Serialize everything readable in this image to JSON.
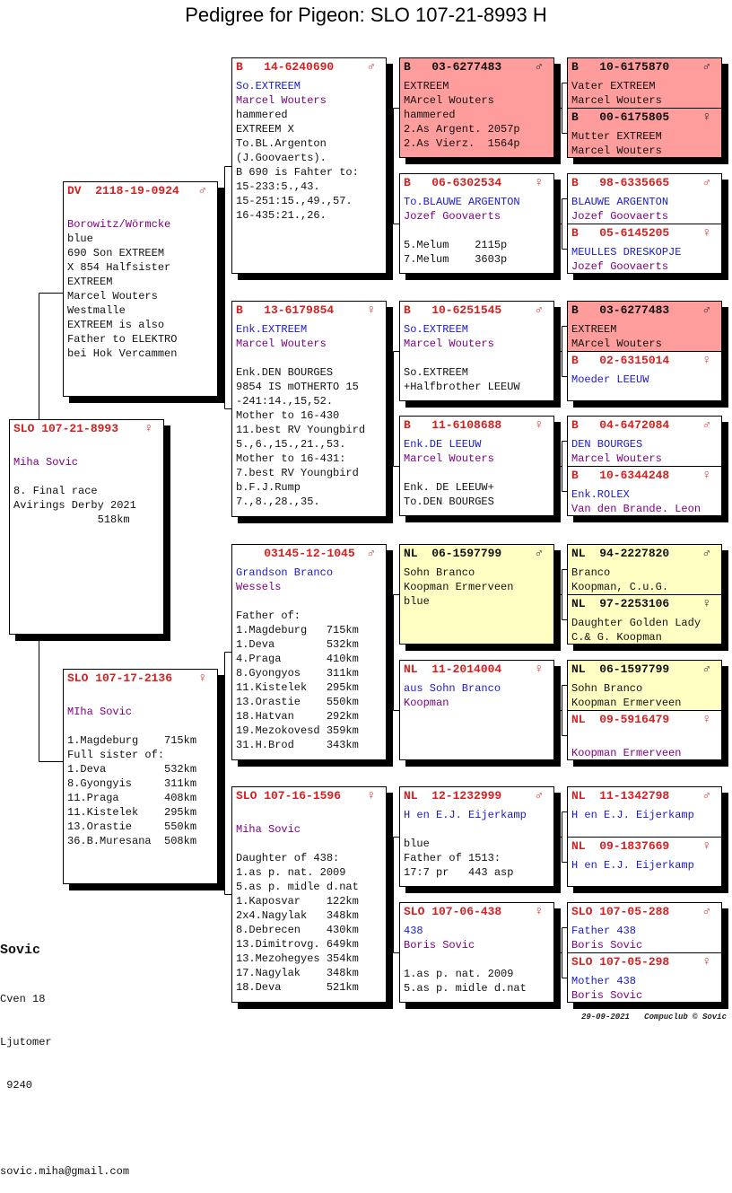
{
  "title": "Pedigree for Pigeon: SLO 107-21-8993 H",
  "colors": {
    "ring": "#d42020",
    "name": "#1a1ad0",
    "breeder": "#800080",
    "pink": "#ff9d9d",
    "yellow": "#ffffc4"
  },
  "pedigree": {
    "subject": {
      "ring": "SLO 107-21-8993",
      "sex": "♀",
      "bg": "white",
      "lines": [
        {
          "t": "",
          "s": "text"
        },
        {
          "t": "Miha Sovic",
          "s": "breeder"
        },
        {
          "t": "",
          "s": "text"
        },
        {
          "t": "8. Final race",
          "s": "text"
        },
        {
          "t": "Avirings Derby 2021",
          "s": "text"
        },
        {
          "t": "             518km",
          "s": "text"
        }
      ]
    },
    "sire": {
      "ring": "DV  2118-19-0924",
      "sex": "♂",
      "bg": "white",
      "lines": [
        {
          "t": "",
          "s": "text"
        },
        {
          "t": "Borowitz/Wörmcke",
          "s": "breeder"
        },
        {
          "t": "blue",
          "s": "text"
        },
        {
          "t": "690 Son EXTREEM",
          "s": "text"
        },
        {
          "t": "X 854 Halfsister",
          "s": "text"
        },
        {
          "t": "EXTREEM",
          "s": "text"
        },
        {
          "t": "Marcel Wouters",
          "s": "text"
        },
        {
          "t": "Westmalle",
          "s": "text"
        },
        {
          "t": "EXTREEM is also",
          "s": "text"
        },
        {
          "t": "Father to ELEKTRO",
          "s": "text"
        },
        {
          "t": "bei Hok Vercammen",
          "s": "text"
        }
      ]
    },
    "dam": {
      "ring": "SLO 107-17-2136",
      "sex": "♀",
      "bg": "white",
      "lines": [
        {
          "t": "",
          "s": "text"
        },
        {
          "t": "MIha Sovic",
          "s": "breeder"
        },
        {
          "t": "",
          "s": "text"
        },
        {
          "t": "1.Magdeburg    715km",
          "s": "text"
        },
        {
          "t": "Full sister of:",
          "s": "text"
        },
        {
          "t": "1.Deva         532km",
          "s": "text"
        },
        {
          "t": "8.Gyongyis     311km",
          "s": "text"
        },
        {
          "t": "11.Praga       408km",
          "s": "text"
        },
        {
          "t": "11.Kistelek    295km",
          "s": "text"
        },
        {
          "t": "13.Orastie     550km",
          "s": "text"
        },
        {
          "t": "36.B.Muresana  508km",
          "s": "text"
        }
      ]
    },
    "gen2": [
      {
        "ring": "B   14-6240690",
        "sex": "♂",
        "bg": "white",
        "lines": [
          {
            "t": "So.EXTREEM",
            "s": "name"
          },
          {
            "t": "Marcel Wouters",
            "s": "breeder"
          },
          {
            "t": "hammered",
            "s": "text"
          },
          {
            "t": "EXTREEM X",
            "s": "text"
          },
          {
            "t": "To.BL.Argenton",
            "s": "text"
          },
          {
            "t": "(J.Goovaerts).",
            "s": "text"
          },
          {
            "t": "B 690 is Fahter to:",
            "s": "text"
          },
          {
            "t": "15-233:5.,43.",
            "s": "text"
          },
          {
            "t": "15-251:15.,49.,57.",
            "s": "text"
          },
          {
            "t": "16-435:21.,26.",
            "s": "text"
          }
        ]
      },
      {
        "ring": "B   13-6179854",
        "sex": "♀",
        "bg": "white",
        "lines": [
          {
            "t": "Enk.EXTREEM",
            "s": "name"
          },
          {
            "t": "Marcel Wouters",
            "s": "breeder"
          },
          {
            "t": "",
            "s": "text"
          },
          {
            "t": "Enk.DEN BOURGES",
            "s": "text"
          },
          {
            "t": "9854 IS mOTHERTO 15",
            "s": "text"
          },
          {
            "t": "-241:14.,15,52.",
            "s": "text"
          },
          {
            "t": "Mother to 16-430",
            "s": "text"
          },
          {
            "t": "11.best RV Youngbird",
            "s": "text"
          },
          {
            "t": "5.,6.,15.,21.,53.",
            "s": "text"
          },
          {
            "t": "Mother to 16-431:",
            "s": "text"
          },
          {
            "t": "7.best RV Youngbird",
            "s": "text"
          },
          {
            "t": "b.F.J.Rump",
            "s": "text"
          },
          {
            "t": "7.,8.,28.,35.",
            "s": "text"
          }
        ]
      },
      {
        "ring": "    03145-12-1045",
        "sex": "♂",
        "bg": "white",
        "lines": [
          {
            "t": "Grandson Branco",
            "s": "name"
          },
          {
            "t": "Wessels",
            "s": "breeder"
          },
          {
            "t": "",
            "s": "text"
          },
          {
            "t": "Father of:",
            "s": "text"
          },
          {
            "t": "1.Magdeburg   715km",
            "s": "text"
          },
          {
            "t": "1.Deva        532km",
            "s": "text"
          },
          {
            "t": "4.Praga       410km",
            "s": "text"
          },
          {
            "t": "8.Gyongyos    311km",
            "s": "text"
          },
          {
            "t": "11.Kistelek   295km",
            "s": "text"
          },
          {
            "t": "13.Orastie    550km",
            "s": "text"
          },
          {
            "t": "18.Hatvan     292km",
            "s": "text"
          },
          {
            "t": "19.Mezokovesd 359km",
            "s": "text"
          },
          {
            "t": "31.H.Brod     343km",
            "s": "text"
          }
        ]
      },
      {
        "ring": "SLO 107-16-1596",
        "sex": "♀",
        "bg": "white",
        "lines": [
          {
            "t": "",
            "s": "text"
          },
          {
            "t": "Miha Sovic",
            "s": "breeder"
          },
          {
            "t": "",
            "s": "text"
          },
          {
            "t": "Daughter of 438:",
            "s": "text"
          },
          {
            "t": "1.as p. nat. 2009",
            "s": "text"
          },
          {
            "t": "5.as p. midle d.nat",
            "s": "text"
          },
          {
            "t": "1.Kaposvar    122km",
            "s": "text"
          },
          {
            "t": "2x4.Nagylak   348km",
            "s": "text"
          },
          {
            "t": "8.Debrecen    430km",
            "s": "text"
          },
          {
            "t": "13.Dimitrovg. 649km",
            "s": "text"
          },
          {
            "t": "13.Mezohegyes 354km",
            "s": "text"
          },
          {
            "t": "17.Nagylak    348km",
            "s": "text"
          },
          {
            "t": "18.Deva       521km",
            "s": "text"
          }
        ]
      }
    ],
    "gen3": [
      {
        "ring": "B   03-6277483",
        "sex": "♂",
        "bg": "pink",
        "lines": [
          {
            "t": "EXTREEM",
            "s": "name"
          },
          {
            "t": "MArcel Wouters",
            "s": "breeder"
          },
          {
            "t": "hammered",
            "s": "text"
          },
          {
            "t": "2.As Argent. 2057p",
            "s": "text"
          },
          {
            "t": "2.As Vierz.  1564p",
            "s": "text"
          }
        ]
      },
      {
        "ring": "B   06-6302534",
        "sex": "♀",
        "bg": "white",
        "lines": [
          {
            "t": "To.BLAUWE ARGENTON",
            "s": "name"
          },
          {
            "t": "Jozef Goovaerts",
            "s": "breeder"
          },
          {
            "t": "",
            "s": "text"
          },
          {
            "t": "5.Melum    2115p",
            "s": "text"
          },
          {
            "t": "7.Melum    3603p",
            "s": "text"
          }
        ]
      },
      {
        "ring": "B   10-6251545",
        "sex": "♂",
        "bg": "white",
        "lines": [
          {
            "t": "So.EXTREEM",
            "s": "name"
          },
          {
            "t": "Marcel Wouters",
            "s": "breeder"
          },
          {
            "t": "",
            "s": "text"
          },
          {
            "t": "So.EXTREEM",
            "s": "text"
          },
          {
            "t": "+Halfbrother LEEUW",
            "s": "text"
          }
        ]
      },
      {
        "ring": "B   11-6108688",
        "sex": "♀",
        "bg": "white",
        "lines": [
          {
            "t": "Enk.DE LEEUW",
            "s": "name"
          },
          {
            "t": "Marcel Wouters",
            "s": "breeder"
          },
          {
            "t": "",
            "s": "text"
          },
          {
            "t": "Enk. DE LEEUW+",
            "s": "text"
          },
          {
            "t": "To.DEN BOURGES",
            "s": "text"
          }
        ]
      },
      {
        "ring": "NL  06-1597799",
        "sex": "♂",
        "bg": "yellow",
        "lines": [
          {
            "t": "Sohn Branco",
            "s": "name"
          },
          {
            "t": "Koopman Ermerveen",
            "s": "breeder"
          },
          {
            "t": "blue",
            "s": "text"
          }
        ]
      },
      {
        "ring": "NL  11-2014004",
        "sex": "♀",
        "bg": "white",
        "lines": [
          {
            "t": "aus Sohn Branco",
            "s": "name"
          },
          {
            "t": "Koopman",
            "s": "breeder"
          }
        ]
      },
      {
        "ring": "NL  12-1232999",
        "sex": "♂",
        "bg": "white",
        "lines": [
          {
            "t": "H en E.J. Eijerkamp",
            "s": "name"
          },
          {
            "t": "",
            "s": "text"
          },
          {
            "t": "blue",
            "s": "text"
          },
          {
            "t": "Father of 1513:",
            "s": "text"
          },
          {
            "t": "17:7 pr   443 asp",
            "s": "text"
          }
        ]
      },
      {
        "ring": "SLO 107-06-438",
        "sex": "♀",
        "bg": "white",
        "lines": [
          {
            "t": "438",
            "s": "name"
          },
          {
            "t": "Boris Sovic",
            "s": "breeder"
          },
          {
            "t": "",
            "s": "text"
          },
          {
            "t": "1.as p. nat. 2009",
            "s": "text"
          },
          {
            "t": "5.as p. midle d.nat",
            "s": "text"
          }
        ]
      }
    ],
    "gen4": [
      {
        "ring": "B   10-6175870",
        "sex": "♂",
        "bg": "pink",
        "lines": [
          {
            "t": "Vater EXTREEM",
            "s": "name"
          },
          {
            "t": "Marcel Wouters",
            "s": "breeder"
          }
        ]
      },
      {
        "ring": "B   00-6175805",
        "sex": "♀",
        "bg": "pink",
        "lines": [
          {
            "t": "Mutter EXTREEM",
            "s": "name"
          },
          {
            "t": "Marcel Wouters",
            "s": "breeder"
          }
        ]
      },
      {
        "ring": "B   98-6335665",
        "sex": "♂",
        "bg": "white",
        "lines": [
          {
            "t": "BLAUWE ARGENTON",
            "s": "name"
          },
          {
            "t": "Jozef Goovaerts",
            "s": "breeder"
          }
        ]
      },
      {
        "ring": "B   05-6145205",
        "sex": "♀",
        "bg": "white",
        "lines": [
          {
            "t": "MEULLES DRESKOPJE",
            "s": "name"
          },
          {
            "t": "Jozef Goovaerts",
            "s": "breeder"
          }
        ]
      },
      {
        "ring": "B   03-6277483",
        "sex": "♂",
        "bg": "pink",
        "lines": [
          {
            "t": "EXTREEM",
            "s": "name"
          },
          {
            "t": "MArcel Wouters",
            "s": "breeder"
          }
        ]
      },
      {
        "ring": "B   02-6315014",
        "sex": "♀",
        "bg": "white",
        "lines": [
          {
            "t": "Moeder LEEUW",
            "s": "name"
          }
        ]
      },
      {
        "ring": "B   04-6472084",
        "sex": "♂",
        "bg": "white",
        "lines": [
          {
            "t": "DEN BOURGES",
            "s": "name"
          },
          {
            "t": "Marcel Wouters",
            "s": "breeder"
          }
        ]
      },
      {
        "ring": "B   10-6344248",
        "sex": "♀",
        "bg": "white",
        "lines": [
          {
            "t": "Enk.ROLEX",
            "s": "name"
          },
          {
            "t": "Van den Brande. Leon",
            "s": "breeder"
          }
        ]
      },
      {
        "ring": "NL  94-2227820",
        "sex": "♂",
        "bg": "yellow",
        "lines": [
          {
            "t": "Branco",
            "s": "name"
          },
          {
            "t": "Koopman, C.u.G.",
            "s": "breeder"
          }
        ]
      },
      {
        "ring": "NL  97-2253106",
        "sex": "♀",
        "bg": "yellow",
        "lines": [
          {
            "t": "Daughter Golden Lady",
            "s": "name"
          },
          {
            "t": "C.& G. Koopman",
            "s": "breeder"
          }
        ]
      },
      {
        "ring": "NL  06-1597799",
        "sex": "♂",
        "bg": "yellow",
        "lines": [
          {
            "t": "Sohn Branco",
            "s": "name"
          },
          {
            "t": "Koopman Ermerveen",
            "s": "breeder"
          }
        ]
      },
      {
        "ring": "NL  09-5916479",
        "sex": "♀",
        "bg": "white",
        "lines": [
          {
            "t": "",
            "s": "text"
          },
          {
            "t": "Koopman Ermerveen",
            "s": "breeder"
          }
        ]
      },
      {
        "ring": "NL  11-1342798",
        "sex": "♂",
        "bg": "white",
        "lines": [
          {
            "t": "H en E.J. Eijerkamp",
            "s": "name"
          }
        ]
      },
      {
        "ring": "NL  09-1837669",
        "sex": "♀",
        "bg": "white",
        "lines": [
          {
            "t": "H en E.J. Eijerkamp",
            "s": "name"
          }
        ]
      },
      {
        "ring": "SLO 107-05-288",
        "sex": "♂",
        "bg": "white",
        "lines": [
          {
            "t": "Father 438",
            "s": "name"
          },
          {
            "t": "Boris Sovic",
            "s": "breeder"
          }
        ]
      },
      {
        "ring": "SLO 107-05-298",
        "sex": "♀",
        "bg": "white",
        "lines": [
          {
            "t": "Mother 438",
            "s": "name"
          },
          {
            "t": "Boris Sovic",
            "s": "breeder"
          }
        ]
      }
    ]
  },
  "owner": {
    "name": "Sovic",
    "street": "Cven 18",
    "city": "Ljutomer",
    "zip": " 9240",
    "email": "sovic.miha@gmail.com"
  },
  "footer": {
    "date": "29-09-2021",
    "credit": "Compuclub © Sovic"
  }
}
